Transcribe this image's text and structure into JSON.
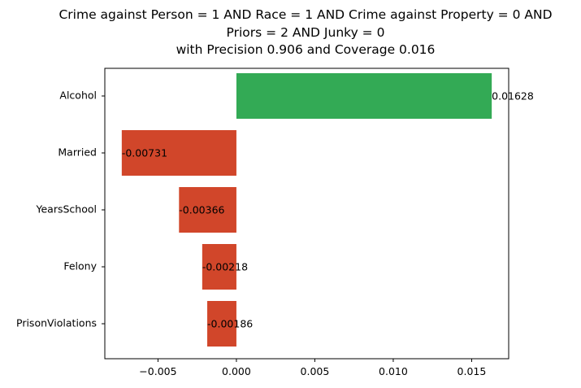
{
  "chart_data": {
    "type": "bar",
    "orientation": "horizontal",
    "title": [
      "Crime against Person = 1 AND Race = 1 AND Crime against Property = 0 AND",
      "Priors = 2 AND Junky = 0",
      "with Precision 0.906 and Coverage 0.016"
    ],
    "xlabel": "",
    "ylabel": "",
    "categories": [
      "Alcohol",
      "Married",
      "YearsSchool",
      "Felony",
      "PrisonViolations"
    ],
    "values": [
      0.01628,
      -0.00731,
      -0.00366,
      -0.00218,
      -0.00186
    ],
    "value_labels": [
      "0.01628",
      "-0.00731",
      "-0.00366",
      "-0.00218",
      "-0.00186"
    ],
    "xlim": [
      -0.00839,
      0.01736
    ],
    "xticks": [
      -0.005,
      0.0,
      0.005,
      0.01,
      0.015
    ],
    "xtick_labels": [
      "−0.005",
      "0.000",
      "0.005",
      "0.010",
      "0.015"
    ],
    "grid": false,
    "legend": "none",
    "colors": {
      "positive": "#33aa55",
      "negative": "#d1462a"
    }
  }
}
